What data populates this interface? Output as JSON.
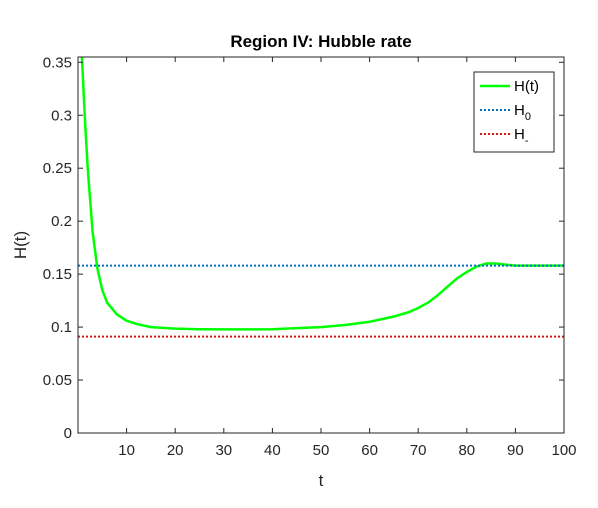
{
  "chart_data": {
    "type": "line",
    "title": "Region IV: Hubble rate",
    "xlabel": "t",
    "ylabel": "H(t)",
    "xlim": [
      0,
      100
    ],
    "ylim": [
      0,
      0.355
    ],
    "xticks": [
      10,
      20,
      30,
      40,
      50,
      60,
      70,
      80,
      90,
      100
    ],
    "yticks": [
      0,
      0.05,
      0.1,
      0.15,
      0.2,
      0.25,
      0.3,
      0.35
    ],
    "ytick_labels": [
      "0",
      "0.05",
      "0.1",
      "0.15",
      "0.2",
      "0.25",
      "0.3",
      "0.35"
    ],
    "grid": false,
    "legend_position": "top-right",
    "series": [
      {
        "name": "H(t)",
        "style": "solid",
        "color": "#00ff00",
        "x": [
          0.8,
          1.5,
          2,
          3,
          4,
          5,
          6,
          8,
          10,
          12,
          15,
          20,
          25,
          30,
          35,
          40,
          45,
          50,
          55,
          60,
          65,
          68,
          70,
          72,
          74,
          76,
          78,
          80,
          82,
          84,
          86,
          88,
          90,
          92,
          95,
          100
        ],
        "y": [
          0.355,
          0.29,
          0.25,
          0.19,
          0.155,
          0.135,
          0.123,
          0.112,
          0.106,
          0.103,
          0.1,
          0.0985,
          0.098,
          0.0978,
          0.0978,
          0.098,
          0.099,
          0.1,
          0.102,
          0.105,
          0.11,
          0.114,
          0.118,
          0.123,
          0.13,
          0.138,
          0.146,
          0.152,
          0.157,
          0.16,
          0.16,
          0.159,
          0.158,
          0.158,
          0.158,
          0.158
        ]
      },
      {
        "name": "H",
        "name_subscript": "0",
        "style": "dotted",
        "color": "#0072bd",
        "x": [
          0,
          100
        ],
        "y": [
          0.158,
          0.158
        ]
      },
      {
        "name": "H",
        "name_subscript": "-",
        "style": "dotted",
        "color": "#dd1111",
        "x": [
          0,
          100
        ],
        "y": [
          0.091,
          0.091
        ]
      }
    ]
  }
}
